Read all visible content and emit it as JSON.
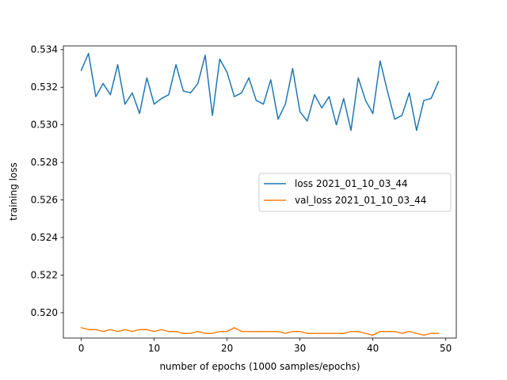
{
  "chart_data": {
    "type": "line",
    "title": "",
    "xlabel": "number of epochs (1000 samples/epochs)",
    "ylabel": "training loss",
    "xlim": [
      -2.45,
      51.45
    ],
    "ylim": [
      0.51865,
      0.5342
    ],
    "xticks": [
      0,
      10,
      20,
      30,
      40,
      50
    ],
    "yticks": [
      0.52,
      0.522,
      0.524,
      0.526,
      0.528,
      0.53,
      0.532,
      0.534
    ],
    "ytick_labels": [
      "0.520",
      "0.522",
      "0.524",
      "0.526",
      "0.528",
      "0.530",
      "0.532",
      "0.534"
    ],
    "grid": false,
    "legend_position": "center-right",
    "x": [
      0,
      1,
      2,
      3,
      4,
      5,
      6,
      7,
      8,
      9,
      10,
      11,
      12,
      13,
      14,
      15,
      16,
      17,
      18,
      19,
      20,
      21,
      22,
      23,
      24,
      25,
      26,
      27,
      28,
      29,
      30,
      31,
      32,
      33,
      34,
      35,
      36,
      37,
      38,
      39,
      40,
      41,
      42,
      43,
      44,
      45,
      46,
      47,
      48,
      49
    ],
    "series": [
      {
        "name": "loss 2021_01_10_03_44",
        "color": "#1f77b4",
        "values": [
          0.5329,
          0.5338,
          0.5315,
          0.5322,
          0.5316,
          0.5332,
          0.5311,
          0.5317,
          0.5306,
          0.5325,
          0.5311,
          0.5314,
          0.5316,
          0.5332,
          0.5318,
          0.5317,
          0.5322,
          0.5337,
          0.5305,
          0.5335,
          0.5328,
          0.5315,
          0.5317,
          0.5325,
          0.5313,
          0.5311,
          0.5324,
          0.5303,
          0.5311,
          0.533,
          0.5307,
          0.5302,
          0.5316,
          0.5309,
          0.5315,
          0.53,
          0.5314,
          0.5297,
          0.5325,
          0.5313,
          0.5306,
          0.5334,
          0.5318,
          0.5303,
          0.5305,
          0.5317,
          0.5297,
          0.5313,
          0.5314,
          0.5323
        ]
      },
      {
        "name": "val_loss 2021_01_10_03_44",
        "color": "#ff7f0e",
        "values": [
          0.5192,
          0.5191,
          0.5191,
          0.519,
          0.5191,
          0.519,
          0.5191,
          0.519,
          0.5191,
          0.5191,
          0.519,
          0.5191,
          0.519,
          0.519,
          0.5189,
          0.5189,
          0.519,
          0.5189,
          0.5189,
          0.519,
          0.519,
          0.5192,
          0.519,
          0.519,
          0.519,
          0.519,
          0.519,
          0.519,
          0.5189,
          0.519,
          0.519,
          0.5189,
          0.5189,
          0.5189,
          0.5189,
          0.5189,
          0.5189,
          0.519,
          0.519,
          0.5189,
          0.5188,
          0.519,
          0.519,
          0.519,
          0.5189,
          0.519,
          0.5189,
          0.5188,
          0.5189,
          0.5189
        ]
      }
    ]
  }
}
